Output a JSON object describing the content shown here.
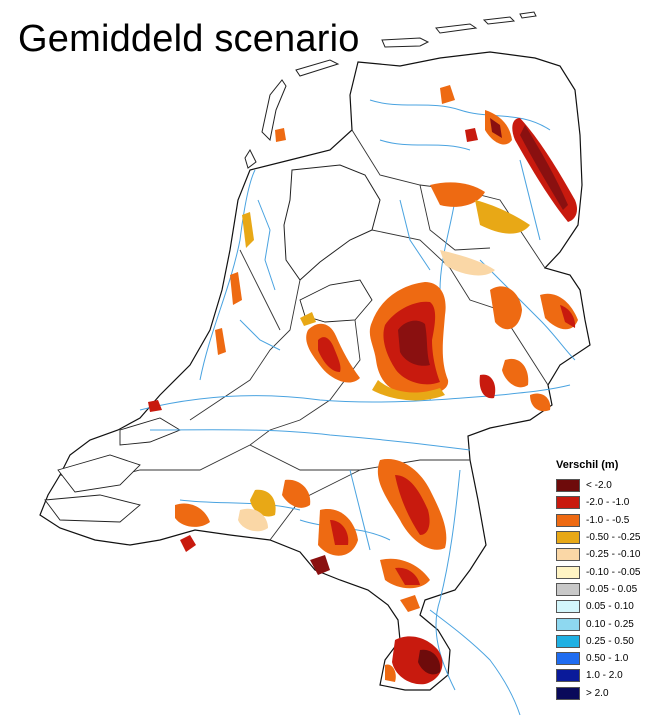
{
  "map": {
    "title": "Gemiddeld scenario"
  },
  "legend": {
    "title": "Verschil (m)",
    "items": [
      {
        "label": "< -2.0",
        "color": "#6e0b0b"
      },
      {
        "label": "-2.0 - -1.0",
        "color": "#c81a0e"
      },
      {
        "label": "-1.0 - -0.5",
        "color": "#ee6a12"
      },
      {
        "label": "-0.50 - -0.25",
        "color": "#e8a816"
      },
      {
        "label": "-0.25 - -0.10",
        "color": "#fad7a6"
      },
      {
        "label": "-0.10 - -0.05",
        "color": "#fff4c4"
      },
      {
        "label": "-0.05 - 0.05",
        "color": "#c8c8c8"
      },
      {
        "label": "0.05 - 0.10",
        "color": "#d3f6fb"
      },
      {
        "label": "0.10 - 0.25",
        "color": "#8ed8f0"
      },
      {
        "label": "0.25 - 0.50",
        "color": "#1fb0e3"
      },
      {
        "label": "0.50 - 1.0",
        "color": "#1f6cf0"
      },
      {
        "label": "1.0 - 2.0",
        "color": "#0a1a9a"
      },
      {
        "label": "> 2.0",
        "color": "#0a0a5a"
      }
    ]
  }
}
